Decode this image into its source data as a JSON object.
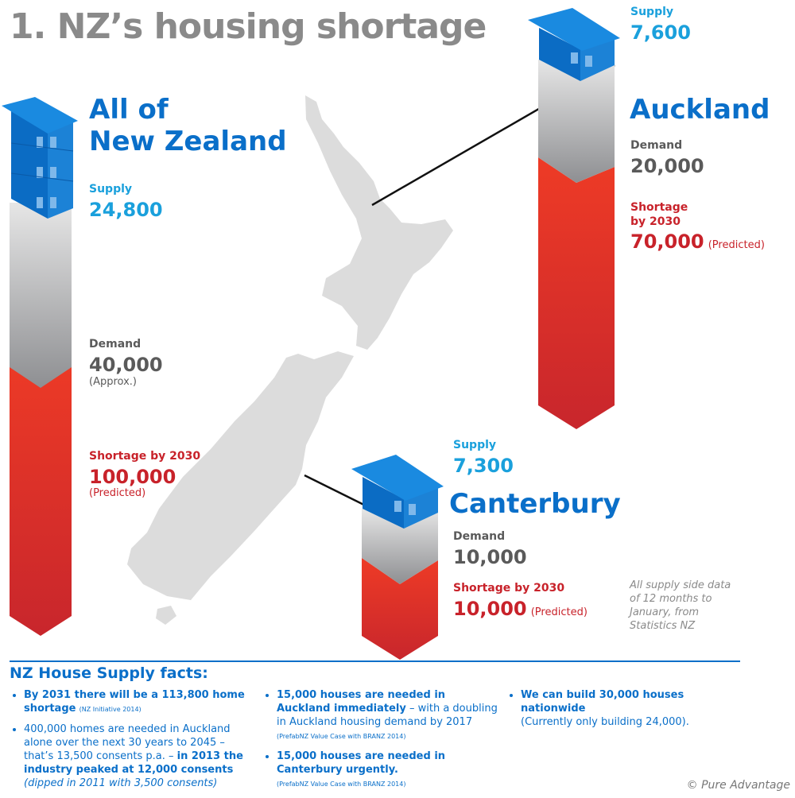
{
  "title": "1.  NZ’s housing shortage",
  "colors": {
    "brand_blue": "#0a6fc9",
    "supply": "#1aa0dc",
    "demand": "#5a5a5a",
    "shortage": "#c8222a",
    "map": "#dcdcdc"
  },
  "nz": {
    "region": [
      "All of",
      "New Zealand"
    ],
    "supply_label": "Supply",
    "supply": "24,800",
    "demand_label": "Demand",
    "demand": "40,000",
    "demand_note": "(Approx.)",
    "shortage_label": "Shortage by 2030",
    "shortage": "100,000",
    "shortage_note": "(Predicted)"
  },
  "auckland": {
    "region": "Auckland",
    "supply_label": "Supply",
    "supply": "7,600",
    "demand_label": "Demand",
    "demand": "20,000",
    "shortage_label": [
      "Shortage",
      "by 2030"
    ],
    "shortage": "70,000",
    "shortage_note": "(Predicted)"
  },
  "canterbury": {
    "region": "Canterbury",
    "supply_label": "Supply",
    "supply": "7,300",
    "demand_label": "Demand",
    "demand": "10,000",
    "shortage_label": "Shortage by 2030",
    "shortage": "10,000",
    "shortage_note": "(Predicted)"
  },
  "note": "All supply side data of 12 months to January, from Statistics NZ",
  "facts": {
    "title": "NZ House Supply facts:",
    "col1": [
      {
        "bold": "By 2031 there will be a 113,800 home shortage",
        "source": "(NZ Initiative 2014)"
      },
      {
        "text": "400,000 homes are needed in Auckland alone over the next 30 years to 2045 – that’s 13,500 consents p.a. – ",
        "bold": "in 2013 the industry peaked at 12,000 consents",
        "italic": " (dipped in 2011 with 3,500 consents)"
      }
    ],
    "col2": [
      {
        "bold": "15,000 houses are needed in Auckland immediately",
        "text": " – with a doubling in Auckland housing demand by 2017",
        "source": "(PrefabNZ Value Case with BRANZ 2014)"
      },
      {
        "bold": "15,000 houses are needed in Canterbury urgently.",
        "source": "(PrefabNZ Value Case with BRANZ 2014)"
      }
    ],
    "col3": [
      {
        "bold": "We can build 30,000 houses nationwide",
        "text": "(Currently only building 24,000)."
      }
    ]
  },
  "copyright": "© Pure Advantage"
}
